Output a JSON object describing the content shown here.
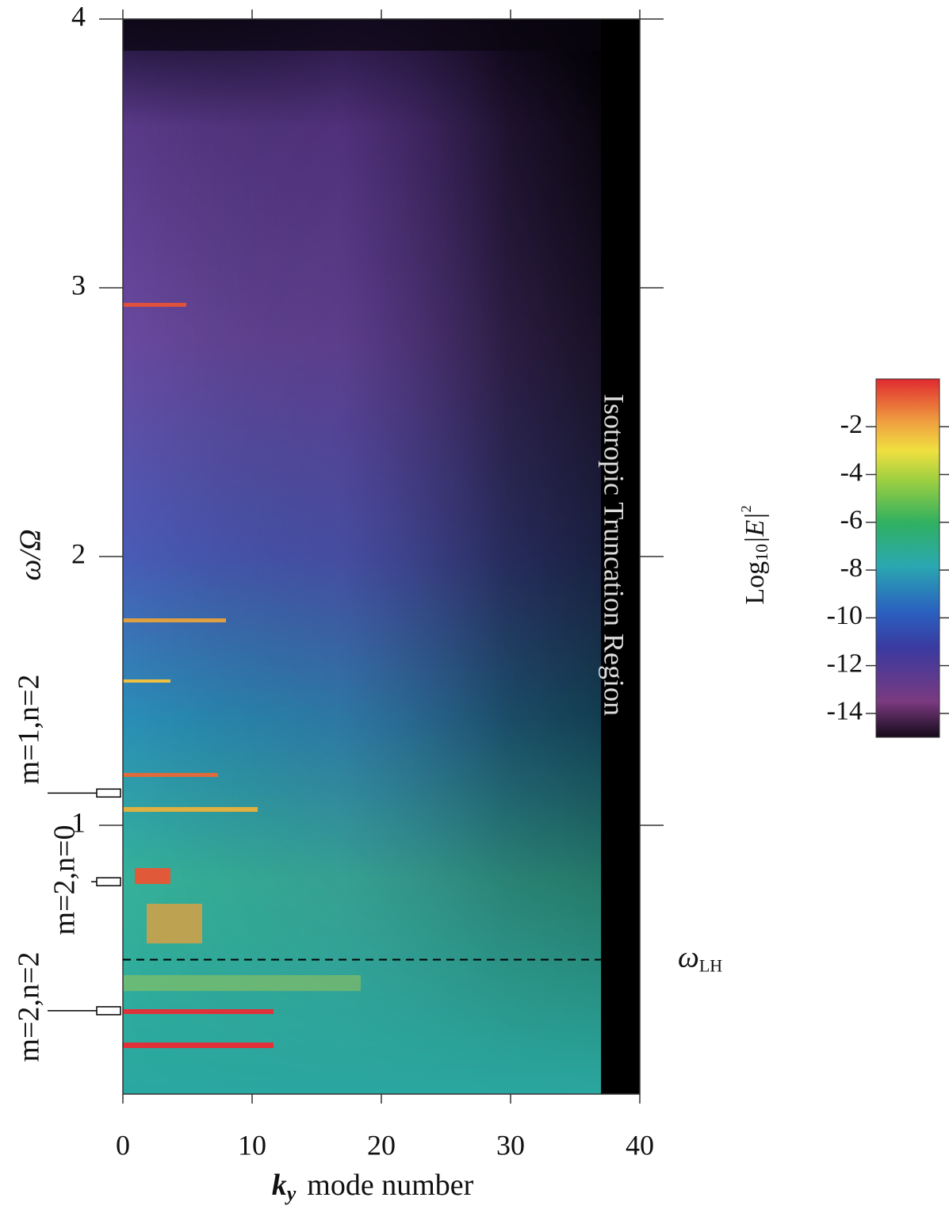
{
  "chart_data": {
    "type": "heatmap",
    "xlabel": {
      "symbol": "k",
      "subscript": "y",
      "text": "mode number"
    },
    "ylabel": "ω/Ω",
    "xlim": [
      0,
      40
    ],
    "ylim": [
      0,
      4
    ],
    "xticks": [
      0,
      10,
      20,
      30,
      40
    ],
    "yticks": [
      1,
      2,
      3,
      4
    ],
    "colorbar": {
      "label": {
        "text": "Log",
        "subscript": "10",
        "symbol": "|E|",
        "superscript": "2"
      },
      "lim": [
        -15,
        0
      ],
      "ticks": [
        -2,
        -4,
        -6,
        -8,
        -10,
        -12,
        -14
      ]
    },
    "truncation_region": {
      "text": "Isotropic Truncation Region",
      "xlim": [
        37,
        40
      ]
    },
    "reference_line": {
      "symbol": "ω",
      "subscript": "LH",
      "value": 0.5
    },
    "mode_markers": [
      {
        "label": "m=1,n=2",
        "value": 1.12
      },
      {
        "label": "m=2,n=0",
        "value": 0.79
      },
      {
        "label": "m=2,n=2",
        "value": 0.31
      }
    ]
  }
}
